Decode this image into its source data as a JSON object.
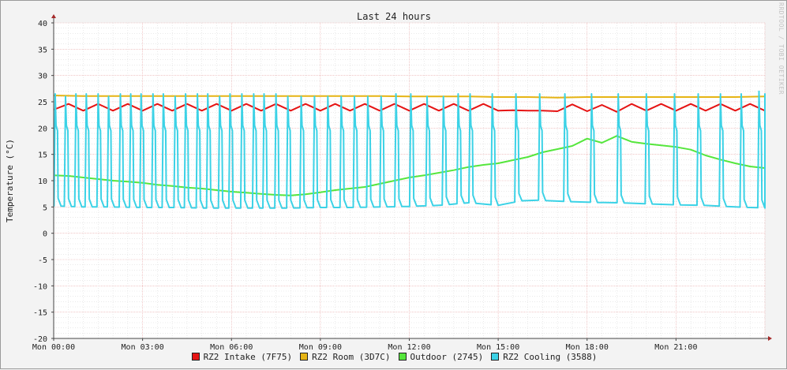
{
  "chart_data": {
    "type": "line",
    "title": "Last 24 hours",
    "ylabel": "Temperature (°C)",
    "xlabel": "",
    "watermark": "RRDTOOL / TOBI OETIKER",
    "ylim": [
      -20,
      40
    ],
    "yticks": [
      40,
      35,
      30,
      25,
      20,
      15,
      10,
      5,
      0,
      -5,
      -10,
      -15,
      -20
    ],
    "x_range_hours": [
      0,
      24
    ],
    "xtick_hours": [
      0,
      3,
      6,
      9,
      12,
      15,
      18,
      21
    ],
    "xtick_labels": [
      "Mon 00:00",
      "Mon 03:00",
      "Mon 06:00",
      "Mon 09:00",
      "Mon 12:00",
      "Mon 15:00",
      "Mon 18:00",
      "Mon 21:00"
    ],
    "grid": true,
    "legend_position": "bottom",
    "series": [
      {
        "name": "RZ2 Intake (7F75)",
        "color": "#e61414",
        "x": [
          0,
          0.5,
          1,
          1.5,
          2,
          2.5,
          3,
          3.5,
          4,
          4.5,
          5,
          5.5,
          6,
          6.5,
          7,
          7.5,
          8,
          8.5,
          9,
          9.5,
          10,
          10.5,
          11,
          11.5,
          12,
          12.5,
          13,
          13.5,
          14,
          14.5,
          15,
          15.5,
          16,
          16.5,
          17,
          17.5,
          18,
          18.5,
          19,
          19.5,
          20,
          20.5,
          21,
          21.5,
          22,
          22.5,
          23,
          23.5,
          24
        ],
        "values": [
          23.5,
          24.6,
          23.3,
          24.6,
          23.3,
          24.6,
          23.3,
          24.6,
          23.3,
          24.6,
          23.3,
          24.6,
          23.3,
          24.6,
          23.3,
          24.6,
          23.3,
          24.6,
          23.3,
          24.6,
          23.3,
          24.6,
          23.3,
          24.6,
          23.3,
          24.6,
          23.3,
          24.6,
          23.3,
          24.6,
          23.3,
          23.4,
          23.3,
          23.3,
          23.2,
          24.5,
          23.2,
          24.4,
          23.1,
          24.6,
          23.3,
          24.6,
          23.3,
          24.6,
          23.3,
          24.6,
          23.3,
          24.6,
          23.3
        ]
      },
      {
        "name": "RZ2 Room (3D7C)",
        "color": "#e6b414",
        "x": [
          0,
          1,
          2,
          3,
          4,
          5,
          6,
          7,
          8,
          9,
          10,
          11,
          12,
          13,
          14,
          15,
          16,
          17,
          18,
          19,
          20,
          21,
          22,
          23,
          24
        ],
        "values": [
          26.2,
          26.1,
          26.1,
          26.1,
          26.1,
          26.1,
          26.1,
          26.1,
          26.1,
          26.1,
          26.1,
          26.1,
          26.0,
          26.0,
          26.0,
          25.9,
          25.9,
          25.8,
          25.9,
          25.9,
          25.9,
          25.9,
          25.9,
          25.9,
          26.0
        ]
      },
      {
        "name": "Outdoor (2745)",
        "color": "#55e63c",
        "x": [
          0,
          0.5,
          1,
          1.5,
          2,
          2.5,
          3,
          3.5,
          4,
          4.5,
          5,
          5.5,
          6,
          6.5,
          7,
          7.5,
          8,
          8.5,
          9,
          9.5,
          10,
          10.5,
          11,
          11.5,
          12,
          12.5,
          13,
          13.5,
          14,
          14.5,
          15,
          15.5,
          16,
          16.5,
          17,
          17.5,
          18,
          18.5,
          19,
          19.5,
          20,
          20.5,
          21,
          21.5,
          22,
          22.5,
          23,
          23.5,
          24
        ],
        "values": [
          11.0,
          10.9,
          10.6,
          10.3,
          10.0,
          9.8,
          9.6,
          9.2,
          9.0,
          8.7,
          8.5,
          8.2,
          7.9,
          7.7,
          7.5,
          7.3,
          7.2,
          7.4,
          7.8,
          8.2,
          8.5,
          8.8,
          9.4,
          10.0,
          10.6,
          11.0,
          11.5,
          12.0,
          12.6,
          13.0,
          13.3,
          13.9,
          14.5,
          15.4,
          16.0,
          16.6,
          18.0,
          17.2,
          18.5,
          17.4,
          17.0,
          16.7,
          16.4,
          15.9,
          14.8,
          14.0,
          13.3,
          12.7,
          12.4
        ]
      },
      {
        "name": "RZ2 Cooling (3588)",
        "color": "#3cd2e6",
        "spike_hours": [
          0.05,
          0.4,
          0.75,
          1.1,
          1.5,
          1.85,
          2.25,
          2.6,
          2.95,
          3.35,
          3.7,
          4.1,
          4.45,
          4.85,
          5.2,
          5.6,
          5.95,
          6.35,
          6.75,
          7.1,
          7.5,
          7.9,
          8.35,
          8.8,
          9.25,
          9.7,
          10.15,
          10.6,
          11.05,
          11.55,
          12.05,
          12.6,
          13.15,
          13.65,
          14.05,
          14.8,
          15.6,
          16.4,
          17.25,
          18.15,
          19.05,
          20.0,
          20.95,
          21.75,
          22.5,
          23.2,
          23.8,
          24.6
        ],
        "spike_peaks": [
          26.5,
          26.0,
          26.5,
          26.5,
          26.5,
          26.0,
          26.5,
          26.5,
          26.5,
          26.5,
          26.5,
          26.0,
          26.5,
          26.5,
          26.5,
          26.0,
          26.5,
          26.5,
          26.5,
          26.5,
          26.5,
          26.0,
          26.0,
          26.0,
          26.0,
          26.0,
          26.0,
          26.0,
          26.0,
          26.5,
          26.5,
          26.0,
          26.0,
          26.5,
          26.5,
          26.5,
          26.5,
          26.5,
          26.5,
          26.5,
          26.5,
          26.5,
          26.5,
          26.5,
          26.5,
          26.5,
          27.0,
          26.5
        ],
        "baseline_x": [
          0,
          1,
          2,
          3,
          4,
          5,
          6,
          7,
          8,
          9,
          10,
          11,
          12,
          13,
          14,
          15,
          16,
          17,
          18,
          19,
          20,
          21,
          22,
          23,
          24
        ],
        "baseline_values": [
          5.2,
          5.0,
          5.0,
          4.9,
          4.9,
          4.8,
          4.8,
          4.8,
          4.8,
          4.9,
          4.9,
          5.0,
          5.1,
          5.3,
          5.8,
          5.3,
          6.4,
          6.1,
          5.9,
          5.8,
          5.6,
          5.4,
          5.3,
          5.0,
          4.8
        ],
        "plateau": 20.5
      }
    ]
  }
}
